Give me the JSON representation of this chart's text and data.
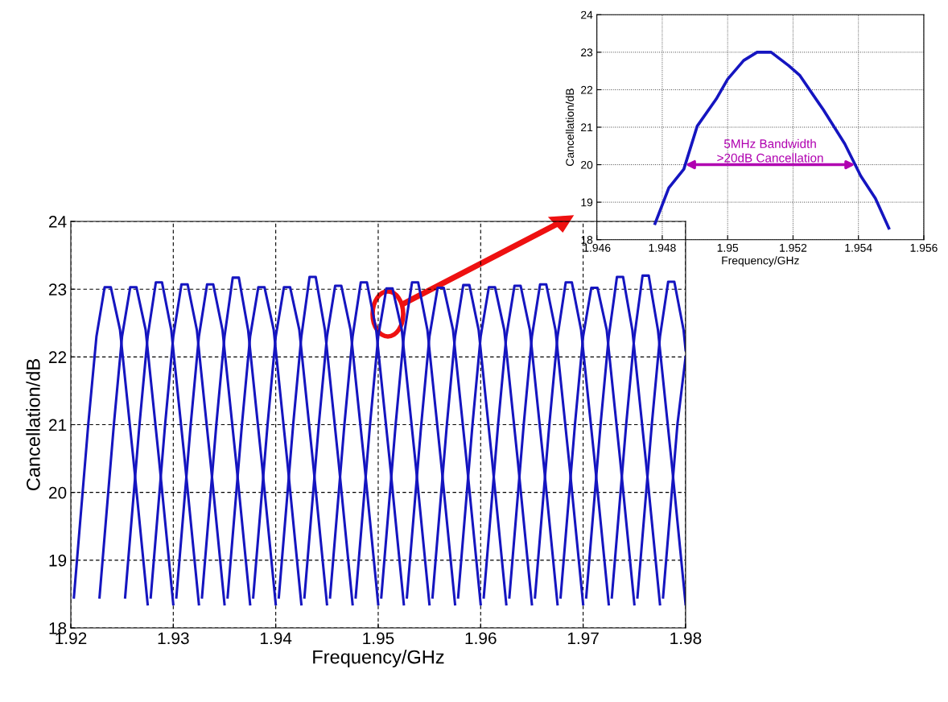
{
  "chart_data": [
    {
      "type": "line",
      "xlabel": "Frequency/GHz",
      "ylabel": "Cancellation/dB",
      "xlim": [
        1.92,
        1.98
      ],
      "ylim": [
        18,
        24
      ],
      "xticks": [
        1.92,
        1.93,
        1.94,
        1.95,
        1.96,
        1.97,
        1.98
      ],
      "yticks": [
        18,
        19,
        20,
        21,
        22,
        23,
        24
      ],
      "grid": true,
      "series": [
        {
          "color": "#1515c0",
          "x": [
            1.9203,
            1.9217,
            1.9225,
            1.9233,
            1.9239,
            1.9248,
            1.9261,
            1.9275
          ],
          "values": [
            18.45,
            21.0,
            22.3,
            23.03,
            23.03,
            22.4,
            20.5,
            18.35
          ]
        },
        {
          "color": "#1515c0",
          "x": [
            1.9228,
            1.9242,
            1.925,
            1.9258,
            1.9264,
            1.9273,
            1.9286,
            1.93
          ],
          "values": [
            18.45,
            21.0,
            22.3,
            23.03,
            23.03,
            22.4,
            20.5,
            18.35
          ]
        },
        {
          "color": "#1515c0",
          "x": [
            1.9253,
            1.9267,
            1.9275,
            1.9283,
            1.9289,
            1.9298,
            1.9311,
            1.9325
          ],
          "values": [
            18.45,
            21.0,
            22.3,
            23.1,
            23.1,
            22.4,
            20.5,
            18.35
          ]
        },
        {
          "color": "#1515c0",
          "x": [
            1.9278,
            1.9292,
            1.93,
            1.9308,
            1.9314,
            1.9323,
            1.9336,
            1.935
          ],
          "values": [
            18.45,
            21.0,
            22.3,
            23.07,
            23.07,
            22.4,
            20.5,
            18.35
          ]
        },
        {
          "color": "#1515c0",
          "x": [
            1.9303,
            1.9317,
            1.9325,
            1.9333,
            1.9339,
            1.9348,
            1.9361,
            1.9375
          ],
          "values": [
            18.45,
            21.0,
            22.3,
            23.07,
            23.07,
            22.4,
            20.5,
            18.35
          ]
        },
        {
          "color": "#1515c0",
          "x": [
            1.9328,
            1.9342,
            1.935,
            1.9358,
            1.9364,
            1.9373,
            1.9386,
            1.94
          ],
          "values": [
            18.45,
            21.0,
            22.3,
            23.17,
            23.17,
            22.4,
            20.5,
            18.35
          ]
        },
        {
          "color": "#1515c0",
          "x": [
            1.9353,
            1.9367,
            1.9375,
            1.9383,
            1.9389,
            1.9398,
            1.9411,
            1.9425
          ],
          "values": [
            18.45,
            21.0,
            22.3,
            23.03,
            23.03,
            22.4,
            20.5,
            18.35
          ]
        },
        {
          "color": "#1515c0",
          "x": [
            1.9378,
            1.9392,
            1.94,
            1.9408,
            1.9414,
            1.9423,
            1.9436,
            1.945
          ],
          "values": [
            18.45,
            21.0,
            22.3,
            23.03,
            23.03,
            22.4,
            20.5,
            18.35
          ]
        },
        {
          "color": "#1515c0",
          "x": [
            1.9403,
            1.9417,
            1.9425,
            1.9433,
            1.9439,
            1.9448,
            1.9461,
            1.9475
          ],
          "values": [
            18.45,
            21.0,
            22.3,
            23.18,
            23.18,
            22.4,
            20.5,
            18.35
          ]
        },
        {
          "color": "#1515c0",
          "x": [
            1.9428,
            1.9442,
            1.945,
            1.9458,
            1.9464,
            1.9473,
            1.9486,
            1.95
          ],
          "values": [
            18.45,
            21.0,
            22.3,
            23.05,
            23.05,
            22.4,
            20.5,
            18.35
          ]
        },
        {
          "color": "#1515c0",
          "x": [
            1.9453,
            1.9467,
            1.9475,
            1.9483,
            1.9489,
            1.9498,
            1.9511,
            1.9525
          ],
          "values": [
            18.45,
            21.0,
            22.3,
            23.1,
            23.1,
            22.4,
            20.5,
            18.35
          ]
        },
        {
          "color": "#1515c0",
          "x": [
            1.9478,
            1.9492,
            1.95,
            1.9508,
            1.9514,
            1.9523,
            1.9536,
            1.955
          ],
          "values": [
            18.45,
            21.0,
            22.3,
            23.01,
            23.01,
            22.4,
            20.5,
            18.35
          ]
        },
        {
          "color": "#1515c0",
          "x": [
            1.9503,
            1.9517,
            1.9525,
            1.9533,
            1.9539,
            1.9548,
            1.9561,
            1.9575
          ],
          "values": [
            18.45,
            21.0,
            22.3,
            23.1,
            23.1,
            22.4,
            20.5,
            18.35
          ]
        },
        {
          "color": "#1515c0",
          "x": [
            1.9528,
            1.9542,
            1.955,
            1.9558,
            1.9564,
            1.9573,
            1.9586,
            1.96
          ],
          "values": [
            18.45,
            21.0,
            22.3,
            23.02,
            23.02,
            22.4,
            20.5,
            18.35
          ]
        },
        {
          "color": "#1515c0",
          "x": [
            1.9553,
            1.9567,
            1.9575,
            1.9583,
            1.9589,
            1.9598,
            1.9611,
            1.9625
          ],
          "values": [
            18.45,
            21.0,
            22.3,
            23.06,
            23.06,
            22.4,
            20.5,
            18.35
          ]
        },
        {
          "color": "#1515c0",
          "x": [
            1.9578,
            1.9592,
            1.96,
            1.9608,
            1.9614,
            1.9623,
            1.9636,
            1.965
          ],
          "values": [
            18.45,
            21.0,
            22.3,
            23.03,
            23.03,
            22.4,
            20.5,
            18.35
          ]
        },
        {
          "color": "#1515c0",
          "x": [
            1.9603,
            1.9617,
            1.9625,
            1.9633,
            1.9639,
            1.9648,
            1.9661,
            1.9675
          ],
          "values": [
            18.45,
            21.0,
            22.3,
            23.05,
            23.05,
            22.4,
            20.5,
            18.35
          ]
        },
        {
          "color": "#1515c0",
          "x": [
            1.9628,
            1.9642,
            1.965,
            1.9658,
            1.9664,
            1.9673,
            1.9686,
            1.97
          ],
          "values": [
            18.45,
            21.0,
            22.3,
            23.07,
            23.07,
            22.4,
            20.5,
            18.35
          ]
        },
        {
          "color": "#1515c0",
          "x": [
            1.9653,
            1.9667,
            1.9675,
            1.9683,
            1.9689,
            1.9698,
            1.9711,
            1.9725
          ],
          "values": [
            18.45,
            21.0,
            22.3,
            23.1,
            23.1,
            22.4,
            20.5,
            18.35
          ]
        },
        {
          "color": "#1515c0",
          "x": [
            1.9678,
            1.9692,
            1.97,
            1.9708,
            1.9714,
            1.9723,
            1.9736,
            1.975
          ],
          "values": [
            18.45,
            21.0,
            22.3,
            23.02,
            23.02,
            22.4,
            20.5,
            18.35
          ]
        },
        {
          "color": "#1515c0",
          "x": [
            1.9703,
            1.9717,
            1.9725,
            1.9733,
            1.9739,
            1.9748,
            1.9761,
            1.9775
          ],
          "values": [
            18.45,
            21.0,
            22.3,
            23.18,
            23.18,
            22.4,
            20.5,
            18.35
          ]
        },
        {
          "color": "#1515c0",
          "x": [
            1.9728,
            1.9742,
            1.975,
            1.9758,
            1.9764,
            1.9773,
            1.9786,
            1.98
          ],
          "values": [
            18.45,
            21.0,
            22.3,
            23.2,
            23.2,
            22.4,
            20.5,
            18.35
          ]
        },
        {
          "color": "#1515c0",
          "x": [
            1.9753,
            1.9767,
            1.9775,
            1.9783,
            1.9789,
            1.9798,
            1.98
          ],
          "values": [
            18.45,
            21.0,
            22.3,
            23.11,
            23.11,
            22.4,
            22.1
          ]
        },
        {
          "color": "#1515c0",
          "x": [
            1.9778,
            1.9792,
            1.98
          ],
          "values": [
            18.45,
            21.0,
            22.0
          ]
        }
      ]
    },
    {
      "type": "line",
      "xlabel": "Frequency/GHz",
      "ylabel": "Cancellation/dB",
      "xlim": [
        1.946,
        1.956
      ],
      "ylim": [
        18,
        24
      ],
      "xticks": [
        1.946,
        1.948,
        1.95,
        1.952,
        1.954,
        1.956
      ],
      "yticks": [
        18,
        19,
        20,
        21,
        22,
        23,
        24
      ],
      "grid": true,
      "series": [
        {
          "color": "#1515c0",
          "x": [
            1.94778,
            1.9482,
            1.94866,
            1.94907,
            1.94965,
            1.95,
            1.95049,
            1.9509,
            1.95133,
            1.95187,
            1.9522,
            1.95293,
            1.95358,
            1.95407,
            1.95452,
            1.95493
          ],
          "values": [
            18.43,
            19.38,
            19.88,
            21.03,
            21.75,
            22.28,
            22.78,
            23.0,
            23.0,
            22.64,
            22.39,
            21.46,
            20.56,
            19.7,
            19.1,
            18.31
          ]
        }
      ],
      "annotations": [
        {
          "text": "5MHz Bandwidth\n>20dB Cancellation",
          "x": 1.9539,
          "y": 20
        }
      ]
    }
  ]
}
